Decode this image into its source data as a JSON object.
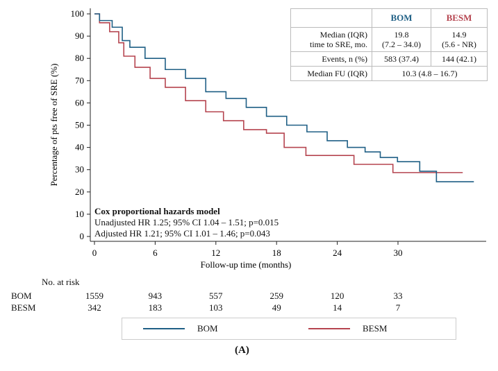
{
  "chart_data": {
    "type": "line",
    "title": "",
    "xlabel": "Follow-up time (months)",
    "ylabel": "Percentage of pts free of SRE (%)",
    "xlim": [
      0,
      38
    ],
    "ylim": [
      0,
      100
    ],
    "xticks": [
      0,
      6,
      12,
      18,
      24,
      30
    ],
    "yticks": [
      0,
      10,
      20,
      30,
      40,
      50,
      60,
      70,
      80,
      90,
      100
    ],
    "grid": false,
    "series": [
      {
        "name": "BOM",
        "color": "#1f5f85",
        "x": [
          0,
          1,
          2.5,
          3,
          4,
          6,
          8,
          10,
          12,
          14,
          16,
          18,
          20,
          22,
          24,
          26,
          27.5,
          29,
          30.9,
          33.4,
          34.2,
          37.5
        ],
        "y": [
          100,
          97,
          94,
          88,
          85,
          80,
          75,
          71,
          65,
          62,
          58,
          54,
          50,
          47,
          43,
          40,
          38,
          35.5,
          33.6,
          29.3,
          24.6,
          24.6
        ]
      },
      {
        "name": "BESM",
        "color": "#b5444f",
        "x": [
          0,
          1,
          2,
          2.8,
          3,
          5,
          6,
          8,
          10,
          12,
          13.5,
          16,
          18,
          19.5,
          22.3,
          29,
          30,
          36.4
        ],
        "y": [
          100,
          96,
          92,
          87,
          81,
          76,
          71,
          67,
          61,
          56,
          52,
          48,
          46.4,
          40,
          36.4,
          32.4,
          28.7,
          28.7
        ]
      }
    ],
    "annotation": {
      "title": "Cox proportional hazards model",
      "lines": [
        "Unadjusted HR 1.25; 95% CI 1.04 – 1.51; p=0.015",
        "Adjusted HR 1.21; 95% CI 1.01 – 1.46; p=0.043"
      ]
    },
    "legend_position": "bottom"
  },
  "stats_table": {
    "headers": [
      "",
      "BOM",
      "BESM"
    ],
    "rows": [
      {
        "label1": "Median (IQR)",
        "label2": "time to SRE, mo.",
        "bom1": "19.8",
        "bom2": "(7.2 – 34.0)",
        "besm1": "14.9",
        "besm2": "(5.6 - NR)"
      },
      {
        "label": "Events, n (%)",
        "bom": "583 (37.4)",
        "besm": "144 (42.1)"
      },
      {
        "label": "Median FU (IQR)",
        "value": "10.3 (4.8 – 16.7)"
      }
    ]
  },
  "risk_table": {
    "title": "No. at risk",
    "rows": [
      {
        "name": "BOM",
        "values": [
          "1559",
          "943",
          "557",
          "259",
          "120",
          "33"
        ]
      },
      {
        "name": "BESM",
        "values": [
          "342",
          "183",
          "103",
          "49",
          "14",
          "7"
        ]
      }
    ]
  },
  "legend": [
    "BOM",
    "BESM"
  ],
  "panel_label": "(A)"
}
